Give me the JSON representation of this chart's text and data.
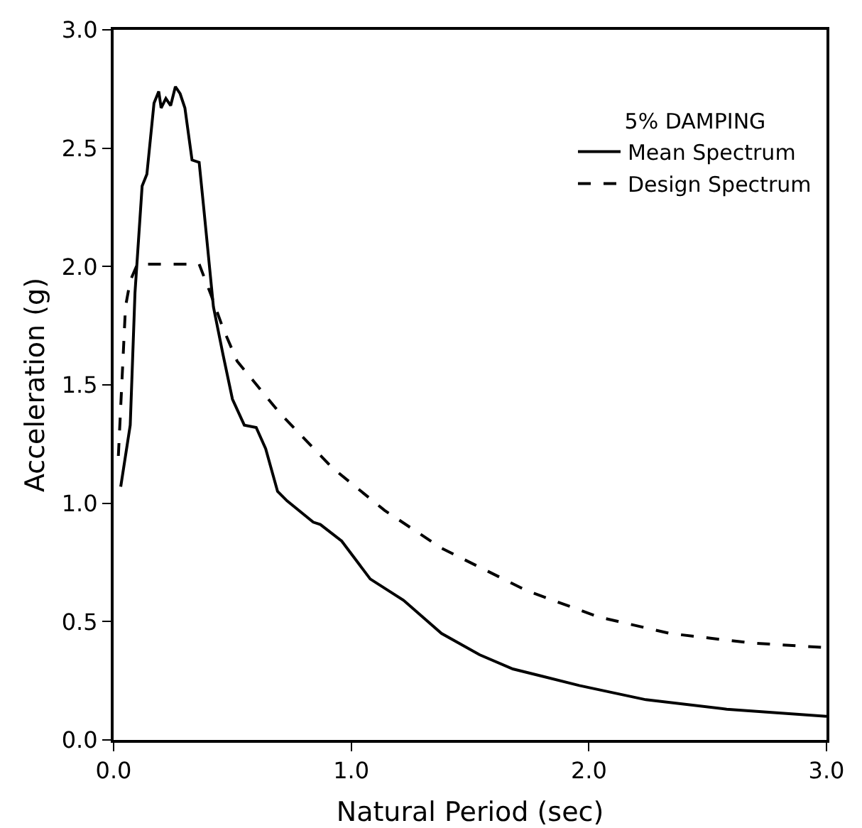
{
  "chart_data": {
    "type": "line",
    "xlabel": "Natural Period (sec)",
    "ylabel": "Acceleration (g)",
    "legend_title": "5% DAMPING",
    "legend": "top right",
    "grid": false,
    "marker": "none",
    "xlim": [
      0,
      3
    ],
    "xticks": [
      {
        "value": 0,
        "label": "0.0"
      },
      {
        "value": 1,
        "label": "1.0"
      },
      {
        "value": 2,
        "label": "2.0"
      },
      {
        "value": 3,
        "label": "3.0"
      }
    ],
    "ylim": [
      0,
      3
    ],
    "yticks": [
      {
        "value": 0,
        "label": "0.0"
      },
      {
        "value": 0.5,
        "label": "0.5"
      },
      {
        "value": 1,
        "label": "1.0"
      },
      {
        "value": 1.5,
        "label": "1.5"
      },
      {
        "value": 2,
        "label": "2.0"
      },
      {
        "value": 2.5,
        "label": "2.5"
      },
      {
        "value": 3,
        "label": "3.0"
      }
    ],
    "series": [
      {
        "name": "Mean Spectrum",
        "color": "#000000",
        "line_style": "solid",
        "x": [
          0.03,
          0.07,
          0.09,
          0.12,
          0.14,
          0.17,
          0.19,
          0.2,
          0.22,
          0.24,
          0.26,
          0.28,
          0.3,
          0.33,
          0.36,
          0.38,
          0.42,
          0.46,
          0.5,
          0.55,
          0.6,
          0.64,
          0.69,
          0.73,
          0.84,
          0.87,
          0.96,
          1.08,
          1.22,
          1.38,
          1.54,
          1.68,
          1.96,
          2.24,
          2.58,
          3.0
        ],
        "values": [
          1.07,
          1.33,
          1.89,
          2.34,
          2.39,
          2.69,
          2.74,
          2.67,
          2.71,
          2.68,
          2.76,
          2.73,
          2.67,
          2.45,
          2.44,
          2.24,
          1.83,
          1.63,
          1.44,
          1.33,
          1.32,
          1.23,
          1.05,
          1.01,
          0.92,
          0.91,
          0.84,
          0.68,
          0.59,
          0.45,
          0.36,
          0.3,
          0.23,
          0.17,
          0.13,
          0.1
        ]
      },
      {
        "name": "Design Spectrum",
        "color": "#000000",
        "line_style": "dashed",
        "x": [
          0.02,
          0.05,
          0.07,
          0.1,
          0.36,
          0.41,
          0.46,
          0.52,
          0.7,
          0.92,
          1.14,
          1.38,
          1.54,
          1.74,
          2.04,
          2.34,
          2.68,
          3.0
        ],
        "values": [
          1.2,
          1.83,
          1.94,
          2.01,
          2.01,
          1.88,
          1.74,
          1.6,
          1.38,
          1.15,
          0.97,
          0.81,
          0.73,
          0.63,
          0.52,
          0.45,
          0.41,
          0.39
        ]
      }
    ]
  }
}
